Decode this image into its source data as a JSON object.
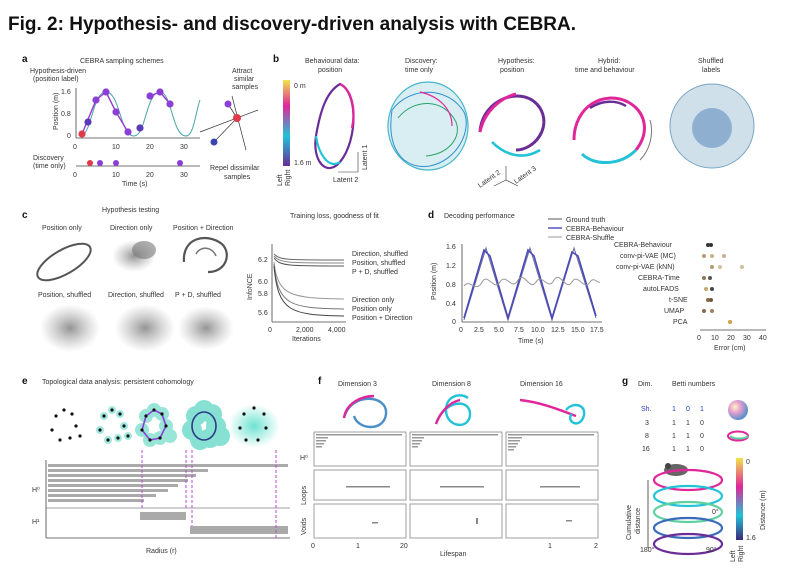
{
  "figure": {
    "title": "Fig. 2: Hypothesis- and discovery-driven analysis with CEBRA.",
    "panel_a": {
      "letter": "a",
      "header": "CEBRA sampling schemes",
      "hypothesis_label_1": "Hypothesis-driven",
      "hypothesis_label_2": "(position label)",
      "ylabel": "Position (m)",
      "yticks": [
        "1.6",
        "0.8",
        "0"
      ],
      "xticks": [
        "0",
        "10",
        "20",
        "30"
      ],
      "discovery_label_1": "Discovery",
      "discovery_label_2": "(time only)",
      "discovery_xticks": [
        "0",
        "10",
        "20",
        "30"
      ],
      "xlabel": "Time (s)",
      "attract_1": "Attract",
      "attract_2": "similar",
      "attract_3": "samples",
      "repel_1": "Repel dissimilar",
      "repel_2": "samples"
    },
    "panel_b": {
      "letter": "b",
      "col1_1": "Behavioural data:",
      "col1_2": "position",
      "col2_1": "Discovery:",
      "col2_2": "time only",
      "col3_1": "Hypothesis:",
      "col3_2": "position",
      "col4_1": "Hybrid:",
      "col4_2": "time and behaviour",
      "col5_1": "Shuffled",
      "col5_2": "labels",
      "cbar_top": "0 m",
      "cbar_bottom": "1.6 m",
      "cbar_left": "Left",
      "cbar_right": "Right",
      "latent1": "Latent 1",
      "latent2": "Latent 2",
      "latent3": "Latent 3",
      "colors": {
        "magenta": "#e0269a",
        "cyan": "#22c2d8",
        "purple": "#6a2d96",
        "yellow": "#f0e44a"
      }
    },
    "panel_c": {
      "letter": "c",
      "header": "Hypothesis testing",
      "labels": [
        "Position only",
        "Direction only",
        "Position + Direction",
        "Position, shuffled",
        "Direction, shuffled",
        "P + D, shuffled"
      ],
      "loss_header": "Training loss, goodness of fit",
      "loss_ylabel": "InfoNCE",
      "loss_yticks": [
        "6.2",
        "6.0",
        "5.8",
        "5.6"
      ],
      "loss_xticks": [
        "0",
        "2,000",
        "4,000"
      ],
      "loss_xlabel": "Iterations",
      "loss_legend": [
        "Direction, shuffled",
        "Position, shuffled",
        "P + D, shuffled",
        "Direction only",
        "Position only",
        "Position + Direction"
      ]
    },
    "panel_d": {
      "letter": "d",
      "header": "Decoding performance",
      "legend": [
        "Ground truth",
        "CEBRA-Behaviour",
        "CEBRA-Shuffle"
      ],
      "ylabel": "Position (m)",
      "yticks": [
        "1.6",
        "1.2",
        "0.8",
        "0.4",
        "0"
      ],
      "xticks": [
        "0",
        "2.5",
        "5.0",
        "7.5",
        "10.0",
        "12.5",
        "15.0",
        "17.5"
      ],
      "xlabel": "Time (s)",
      "methods": [
        "CEBRA-Behaviour",
        "conv-pi-VAE (MC)",
        "conv-pi-VAE (kNN)",
        "CEBRA-Time",
        "autoLFADS",
        "t-SNE",
        "UMAP",
        "PCA"
      ],
      "err_xticks": [
        "0",
        "10",
        "20",
        "30",
        "40"
      ],
      "err_xlabel": "Error (cm)"
    },
    "panel_e": {
      "letter": "e",
      "header": "Topological data analysis: persistent cohomology",
      "h0": "H⁰",
      "h1": "H¹",
      "xlabel": "Radius (r)"
    },
    "panel_f": {
      "letter": "f",
      "dims": [
        "Dimension 3",
        "Dimension 8",
        "Dimension 16"
      ],
      "h0": "H⁰",
      "loops": "Loops",
      "voids": "Voids",
      "xticks": [
        "0",
        "1",
        "20",
        "1",
        "2"
      ],
      "xlabel": "Lifespan"
    },
    "panel_g": {
      "letter": "g",
      "dim_header": "Dim.",
      "betti_header": "Betti numbers",
      "rows": [
        {
          "dim": "Sh.",
          "b": [
            "1",
            "0",
            "1"
          ]
        },
        {
          "dim": "3",
          "b": [
            "1",
            "1",
            "0"
          ]
        },
        {
          "dim": "8",
          "b": [
            "1",
            "1",
            "0"
          ]
        },
        {
          "dim": "16",
          "b": [
            "1",
            "1",
            "0"
          ]
        }
      ],
      "ylabel_1": "Cumulative",
      "ylabel_2": "distance",
      "angle_0": "0°",
      "angle_90": "90°",
      "angle_180": "180°",
      "cbar_top": "0",
      "cbar_bottom": "1.6",
      "cbar_label": "Distance (m)",
      "cbar_left": "Left",
      "cbar_right": "Right"
    }
  }
}
